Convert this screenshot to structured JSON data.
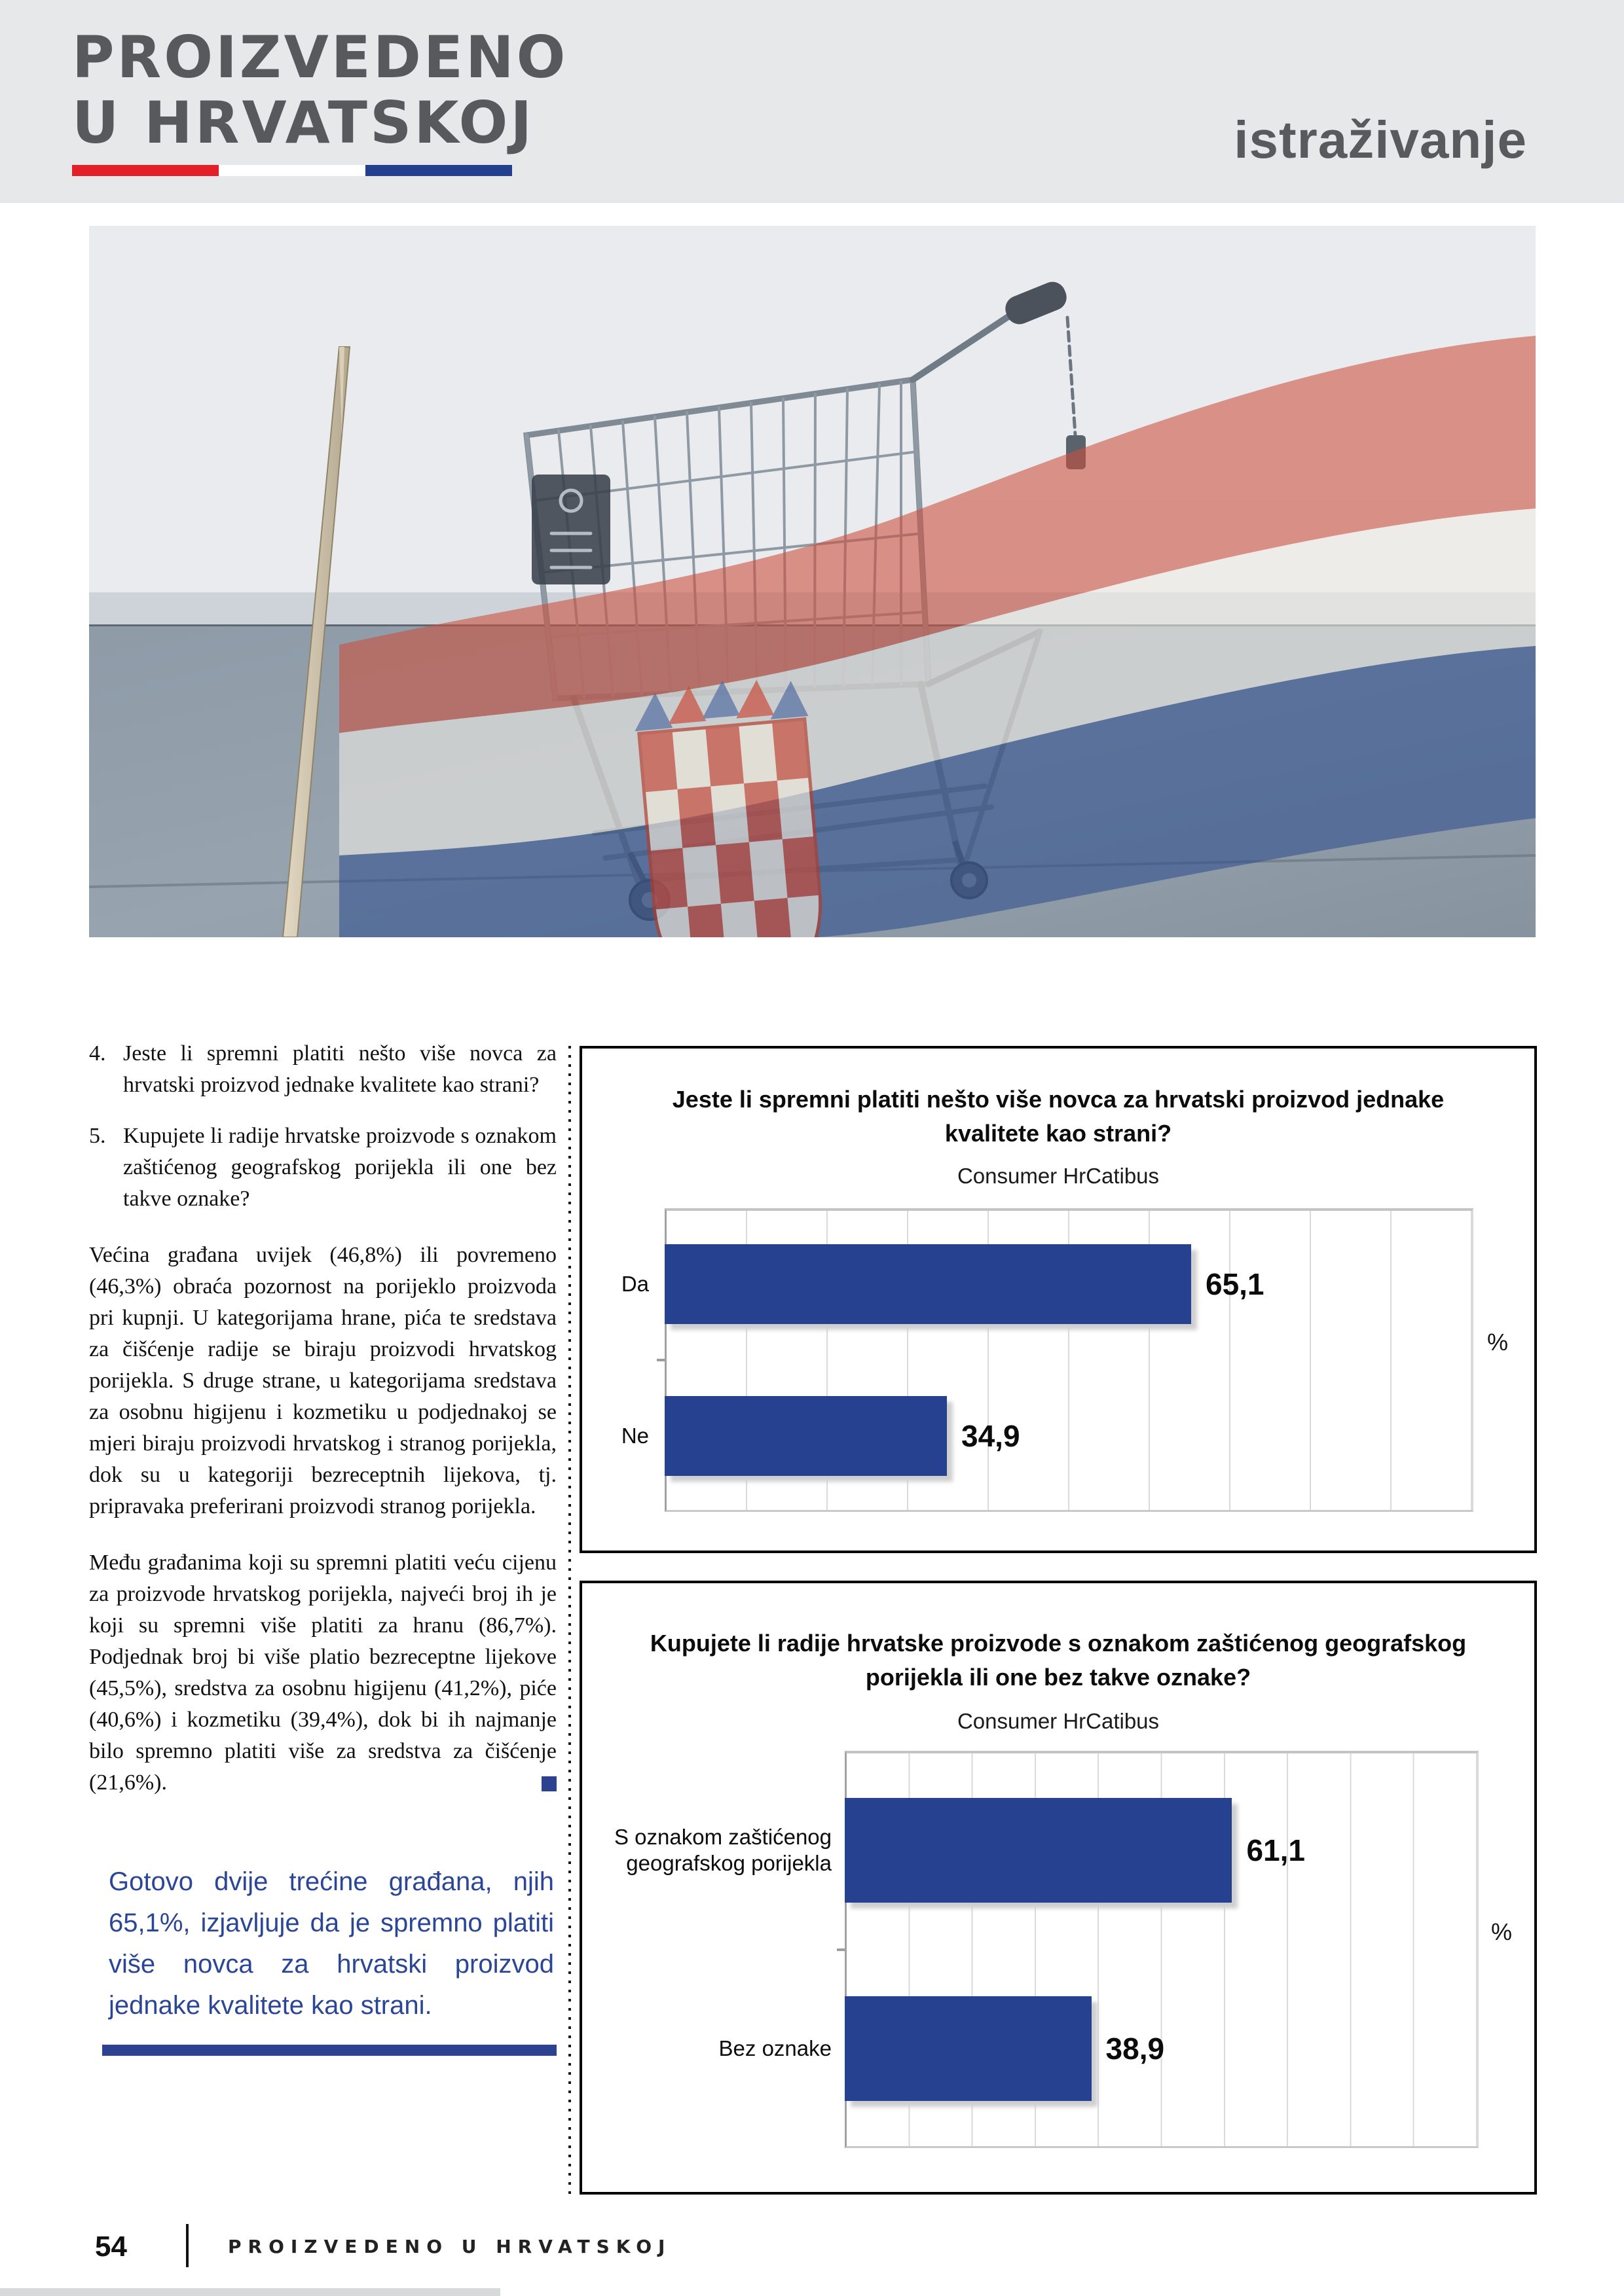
{
  "header": {
    "logo_line1": "PROIZVEDENO",
    "logo_line2": "U HRVATSKOJ",
    "section_label": "istraživanje",
    "flag_colors": {
      "red": "#e32028",
      "white": "#ffffff",
      "blue": "#23408e"
    }
  },
  "photo": {
    "name": "shopping-cart-with-croatian-flag-photo"
  },
  "article": {
    "questions": [
      {
        "number": "4.",
        "text": "Jeste li spremni platiti nešto više novca za hrvatski proizvod jednake kvalitete kao strani?"
      },
      {
        "number": "5.",
        "text": "Kupujete li radije hrvatske proizvode s oznakom zaštićenog geografskog porijekla ili one bez takve oznake?"
      }
    ],
    "paragraphs": [
      "Većina građana uvijek (46,8%) ili povremeno (46,3%) obraća pozornost na porijeklo proizvoda pri kupnji. U kategorijama hrane, pića te sredstava za čišćenje radije se biraju proizvodi hrvatskog porijekla. S druge strane, u kategorijama sredstava za osobnu higijenu i kozmetiku u podjednakoj se mjeri biraju proizvodi hrvatskog i stranog porijekla, dok su u kategoriji bezreceptnih lijekova, tj. pripravaka preferirani proizvodi stranog porijekla.",
      "Među građanima koji su spremni platiti veću cijenu za proizvode hrvatskog porijekla, najveći broj ih je koji su spremni više platiti za hranu (86,7%). Podjednak broj bi više platio bezreceptne lijekove (45,5%), sredstva za osobnu higijenu (41,2%), piće (40,6%) i kozmetiku (39,4%), dok bi ih najmanje bilo spremno platiti više za sredstva za čišćenje (21,6%)."
    ],
    "callout": "Gotovo dvije trećine građana, njih 65,1%, izjavljuje da je spremno platiti više novca za hrvatski proizvod jednake kvalitete kao strani.",
    "accent_color": "#2c418f"
  },
  "chart_data": [
    {
      "type": "bar",
      "orientation": "horizontal",
      "title": "Jeste li spremni platiti nešto više novca za hrvatski proizvod jednake kvalitete kao strani?",
      "subtitle": "Consumer HrCatibus",
      "categories": [
        "Da",
        "Ne"
      ],
      "values": [
        65.1,
        34.9
      ],
      "value_labels": [
        "65,1",
        "34,9"
      ],
      "unit": "%",
      "xlim": [
        0,
        100
      ],
      "gridline_step": 10,
      "grid": true,
      "bar_color": "#25418f"
    },
    {
      "type": "bar",
      "orientation": "horizontal",
      "title": "Kupujete li radije hrvatske proizvode s oznakom zaštićenog geografskog porijekla ili one bez takve oznake?",
      "subtitle": "Consumer HrCatibus",
      "categories": [
        "S oznakom zaštićenog geografskog porijekla",
        "Bez oznake"
      ],
      "values": [
        61.1,
        38.9
      ],
      "value_labels": [
        "61,1",
        "38,9"
      ],
      "unit": "%",
      "xlim": [
        0,
        100
      ],
      "gridline_step": 10,
      "grid": true,
      "bar_color": "#25418f"
    }
  ],
  "footer": {
    "page_number": "54",
    "magazine_title": "PROIZVEDENO U HRVATSKOJ"
  }
}
